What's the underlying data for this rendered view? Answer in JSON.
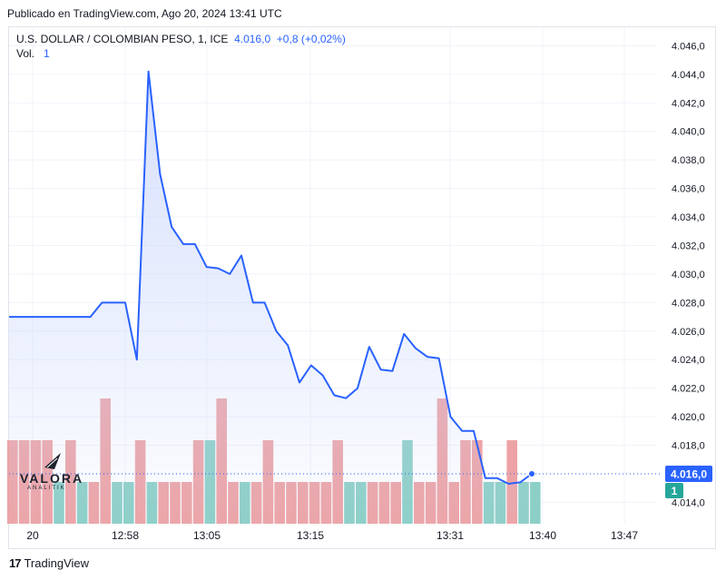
{
  "header": {
    "publish_text": "Publicado en TradingView.com, Ago 20, 2024 13:41 UTC"
  },
  "legend": {
    "symbol": "U.S. DOLLAR / COLOMBIAN PESO, 1, ICE",
    "price": "4.016,0",
    "change": "+0,8 (+0,02%)",
    "vol_label": "Vol.",
    "vol_value": "1"
  },
  "footer": {
    "brand": "TradingView",
    "logo_text": "17"
  },
  "watermark": {
    "name": "VALORA",
    "sub": "ANALITIK"
  },
  "colors": {
    "line": "#2962ff",
    "area_top": "#c9d6fb",
    "up_volume": "#8ccfc6",
    "down_volume": "#eda3a5",
    "grid": "#f0f3fa",
    "price_tag": "#2962ff",
    "vol_tag": "#26a69a"
  },
  "chart_data": {
    "type": "line",
    "title": "U.S. DOLLAR / COLOMBIAN PESO, 1, ICE",
    "x_tick_labels": [
      "20",
      "12:58",
      "13:05",
      "13:15",
      "13:31",
      "13:40",
      "13:47"
    ],
    "y_tick_labels": [
      "4.014,0",
      "4.016,0",
      "4.018,0",
      "4.020,0",
      "4.022,0",
      "4.024,0",
      "4.026,0",
      "4.028,0",
      "4.030,0",
      "4.032,0",
      "4.034,0",
      "4.036,0",
      "4.038,0",
      "4.040,0",
      "4.042,0",
      "4.044,0",
      "4.046,0"
    ],
    "y_tick_values": [
      4014,
      4016,
      4018,
      4020,
      4022,
      4024,
      4026,
      4028,
      4030,
      4032,
      4034,
      4036,
      4038,
      4040,
      4042,
      4044,
      4046
    ],
    "ylim": [
      4012.5,
      4047.3
    ],
    "grid": true,
    "current_price_label": "4.016,0",
    "current_price": 4016.0,
    "current_volume_label": "1",
    "series": [
      {
        "name": "Price",
        "values": [
          4027.0,
          4027.0,
          4027.0,
          4027.0,
          4027.0,
          4027.0,
          4027.0,
          4027.0,
          4028.0,
          4028.0,
          4028.0,
          4024.0,
          4044.2,
          4037.0,
          4033.3,
          4032.1,
          4032.1,
          4030.5,
          4030.4,
          4030.0,
          4031.3,
          4028.0,
          4028.0,
          4026.0,
          4025.0,
          4022.4,
          4023.6,
          4022.9,
          4021.5,
          4021.3,
          4022.0,
          4024.9,
          4023.3,
          4023.2,
          4025.8,
          4024.8,
          4024.2,
          4024.1,
          4020.0,
          4019.0,
          4019.0,
          4015.7,
          4015.7,
          4015.3,
          4015.4,
          4016.0
        ]
      },
      {
        "name": "Volume",
        "values": [
          2,
          2,
          2,
          2,
          1,
          2,
          1,
          1,
          3,
          1,
          1,
          2,
          1,
          1,
          1,
          1,
          2,
          2,
          3,
          1,
          1,
          1,
          2,
          1,
          1,
          1,
          1,
          1,
          2,
          1,
          1,
          1,
          1,
          1,
          2,
          1,
          1,
          3,
          1,
          2,
          2,
          1,
          1,
          2,
          1,
          1
        ],
        "direction": [
          "down",
          "down",
          "down",
          "down",
          "up",
          "down",
          "up",
          "down",
          "down",
          "up",
          "up",
          "down",
          "up",
          "down",
          "down",
          "down",
          "down",
          "up",
          "down",
          "down",
          "up",
          "down",
          "down",
          "down",
          "down",
          "down",
          "down",
          "down",
          "down",
          "up",
          "up",
          "down",
          "down",
          "down",
          "up",
          "down",
          "down",
          "down",
          "down",
          "down",
          "down",
          "up",
          "up",
          "down",
          "up",
          "up"
        ]
      }
    ]
  }
}
